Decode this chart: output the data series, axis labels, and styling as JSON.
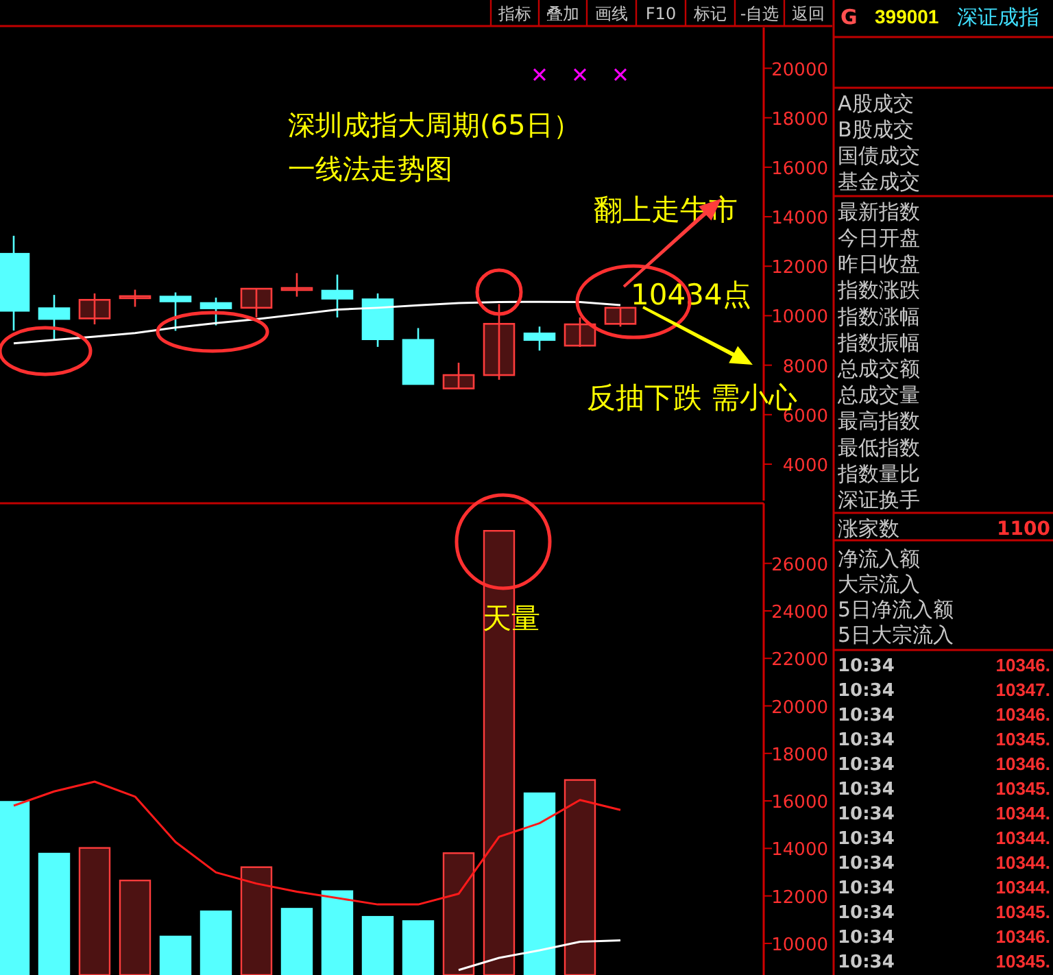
{
  "chart_data": [
    {
      "type": "candlestick",
      "title": "深圳成指大周期(65日）",
      "subtitle": "一线法走势图",
      "categories": [
        null,
        null,
        null,
        null,
        null,
        null,
        null,
        null,
        null,
        null,
        null,
        null,
        null,
        null,
        null,
        null
      ],
      "ohlc": [
        [
          12500,
          13230,
          9400,
          10200
        ],
        [
          10300,
          10840,
          9020,
          9870
        ],
        [
          9890,
          10900,
          9650,
          10640
        ],
        [
          10720,
          11050,
          10360,
          10790
        ],
        [
          10770,
          10940,
          9390,
          10580
        ],
        [
          10510,
          10730,
          9610,
          10300
        ],
        [
          10320,
          11090,
          9930,
          11090
        ],
        [
          11100,
          11720,
          10770,
          11120
        ],
        [
          11010,
          11660,
          9930,
          10690
        ],
        [
          10660,
          10900,
          8740,
          9050
        ],
        [
          9020,
          9500,
          7240,
          7240
        ],
        [
          7060,
          8100,
          7060,
          7600
        ],
        [
          7600,
          10470,
          7410,
          9670
        ],
        [
          9280,
          9560,
          8590,
          9020
        ],
        [
          8790,
          9930,
          8740,
          9650
        ],
        [
          9670,
          10320,
          9560,
          10320
        ]
      ],
      "colors": [
        "#55ffff",
        "#55ffff",
        "#ff3c3c",
        "#ff3c3c",
        "#55ffff",
        "#55ffff",
        "#ff3c3c",
        "#ff3c3c",
        "#55ffff",
        "#55ffff",
        "#55ffff",
        "#ff3c3c",
        "#ff3c3c",
        "#55ffff",
        "#ff3c3c",
        "#ff3c3c"
      ],
      "series": [
        {
          "type": "line",
          "color": "#ffffff",
          "values": [
            8880,
            9020,
            9150,
            9300,
            9520,
            9700,
            9860,
            10050,
            10250,
            10320,
            10420,
            10510,
            10550,
            10560,
            10550,
            10430
          ]
        },
        {
          "type": "scatter",
          "color": "#ff00ff",
          "marker": "cross",
          "values": [
            null,
            null,
            null,
            null,
            null,
            null,
            null,
            null,
            null,
            null,
            null,
            null,
            null,
            19740,
            19740,
            19740
          ]
        }
      ],
      "ylim": [
        2530,
        21650
      ],
      "yticks": [
        4000,
        6000,
        8000,
        10000,
        12000,
        14000,
        16000,
        18000,
        20000
      ],
      "tick_labels": "y",
      "annotations": [
        "翻上走牛市",
        "10434点",
        "反抽下跌 需小心"
      ]
    },
    {
      "type": "bar",
      "categories": [
        null,
        null,
        null,
        null,
        null,
        null,
        null,
        null,
        null,
        null,
        null,
        null,
        null,
        null,
        null,
        null
      ],
      "series": [
        {
          "type": "bar",
          "colors": [
            "#55ffff",
            "#55ffff",
            "#ff3c3c",
            "#ff3c3c",
            "#55ffff",
            "#55ffff",
            "#ff3c3c",
            "#55ffff",
            "#55ffff",
            "#55ffff",
            "#55ffff",
            "#ff3c3c",
            "#ff3c3c",
            "#55ffff",
            "#ff3c3c",
            null
          ],
          "values": [
            15960,
            13780,
            14020,
            12650,
            10290,
            11350,
            13210,
            11460,
            12200,
            11120,
            10940,
            13800,
            27370,
            16320,
            16880,
            null
          ]
        },
        {
          "type": "line",
          "color": "#ff1a1a",
          "values": [
            15800,
            16400,
            16810,
            16180,
            14270,
            12990,
            12520,
            12180,
            11910,
            11640,
            11640,
            12090,
            14490,
            15060,
            16040,
            15620
          ]
        },
        {
          "type": "line",
          "color": "#ffffff",
          "values": [
            null,
            null,
            null,
            null,
            null,
            null,
            null,
            null,
            null,
            null,
            null,
            8880,
            9390,
            9710,
            10070,
            10130
          ]
        }
      ],
      "ylim": [
        8670,
        28530
      ],
      "yticks": [
        10000,
        12000,
        14000,
        16000,
        18000,
        20000,
        22000,
        24000,
        26000
      ],
      "tick_labels": "y",
      "annotations": [
        "天量"
      ]
    },
    {
      "type": "other",
      "annotations": [
        "G",
        "399001",
        "深证成指",
        "A股成交",
        "B股成交",
        "国债成交",
        "基金成交",
        "最新指数",
        "今日开盘",
        "昨日收盘",
        "指数涨跌",
        "指数涨幅",
        "指数振幅",
        "总成交额",
        "总成交量",
        "最高指数",
        "最低指数",
        "指数量比",
        "深证换手",
        "涨家数",
        "1100",
        "净流入额",
        "大宗流入",
        "5日净流入额",
        "5日大宗流入",
        "10:34",
        "10346.",
        "10:34",
        "10347.",
        "10:34",
        "10346.",
        "10:34",
        "10345.",
        "10:34",
        "10346.",
        "10:34",
        "10345.",
        "10:34",
        "10344.",
        "10:34",
        "10344.",
        "10:34",
        "10344.",
        "10:34",
        "10344.",
        "10:34",
        "10345.",
        "10:34",
        "10346.",
        "10:34",
        "10345.",
        "指标",
        "叠加",
        "画线",
        "F10",
        "标记",
        "-自选",
        "返回"
      ]
    }
  ]
}
